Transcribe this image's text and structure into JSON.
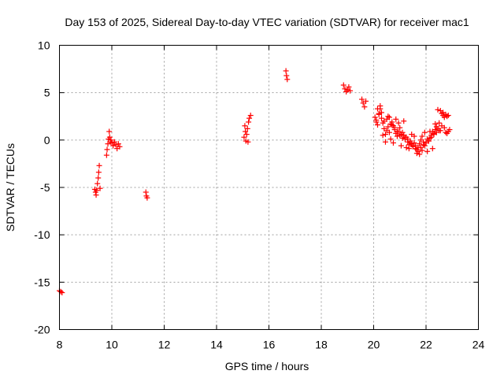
{
  "chart_data": {
    "type": "scatter",
    "title": "Day 153 of 2025, Sidereal Day-to-day VTEC variation (SDTVAR) for receiver mac1",
    "xlabel": "GPS time / hours",
    "ylabel": "SDTVAR / TECUs",
    "xlim": [
      8,
      24
    ],
    "ylim": [
      -20,
      10
    ],
    "xticks": [
      8,
      10,
      12,
      14,
      16,
      18,
      20,
      22,
      24
    ],
    "yticks": [
      10,
      5,
      0,
      -5,
      -10,
      -15,
      -20
    ],
    "grid": true,
    "marker": "+",
    "color": "#ff0000",
    "series": [
      {
        "name": "SDTVAR",
        "x": [
          8.0,
          8.05,
          8.1,
          9.35,
          9.38,
          9.4,
          9.42,
          9.45,
          9.48,
          9.5,
          9.52,
          9.55,
          9.8,
          9.82,
          9.85,
          9.87,
          9.9,
          9.92,
          9.95,
          9.97,
          10.0,
          10.05,
          10.1,
          10.15,
          10.2,
          10.25,
          10.3,
          11.3,
          11.32,
          11.35,
          15.05,
          15.08,
          15.1,
          15.12,
          15.15,
          15.18,
          15.2,
          15.22,
          15.25,
          15.3,
          16.65,
          16.67,
          16.7,
          18.85,
          18.9,
          18.95,
          19.0,
          19.05,
          19.1,
          19.55,
          19.6,
          19.65,
          19.7,
          20.05,
          20.1,
          20.15,
          20.2,
          20.25,
          20.3,
          20.35,
          20.4,
          20.45,
          20.5,
          20.55,
          20.6,
          20.65,
          20.7,
          20.75,
          20.8,
          20.85,
          20.9,
          20.95,
          21.0,
          21.05,
          21.1,
          21.15,
          21.2,
          21.25,
          21.3,
          21.35,
          21.4,
          21.45,
          21.5,
          21.55,
          21.6,
          21.65,
          21.7,
          21.75,
          21.8,
          21.85,
          21.9,
          21.95,
          22.0,
          22.05,
          22.1,
          22.15,
          22.2,
          22.25,
          22.3,
          22.35,
          22.4,
          22.45,
          22.5,
          22.55,
          22.6,
          22.65,
          22.7,
          22.75,
          22.8,
          22.85,
          22.9,
          20.1,
          20.2,
          20.3,
          20.4,
          20.5,
          20.6,
          20.7,
          20.8,
          20.9,
          21.0,
          21.1,
          21.2,
          21.3,
          21.4,
          21.5,
          21.6,
          21.7,
          21.8,
          21.9,
          22.0,
          22.1,
          22.2,
          22.3,
          22.4,
          22.5,
          22.6,
          22.7,
          22.8,
          20.15,
          20.25,
          20.35,
          20.45,
          20.55,
          20.65,
          20.75,
          20.85,
          20.95,
          21.05,
          21.15,
          21.25,
          21.35,
          21.45,
          21.55,
          21.65,
          21.75,
          21.85,
          21.95,
          22.05,
          22.15,
          22.25,
          22.35,
          22.45,
          22.55,
          22.65,
          22.75,
          22.85
        ],
        "y": [
          -15.9,
          -16.0,
          -16.1,
          -5.2,
          -5.5,
          -5.8,
          -5.3,
          -4.6,
          -4.0,
          -3.4,
          -2.7,
          -5.1,
          -1.6,
          -1.0,
          -0.4,
          0.1,
          0.9,
          0.3,
          -0.2,
          0.0,
          -0.3,
          -0.6,
          -0.2,
          -0.5,
          -0.9,
          -0.4,
          -0.7,
          -5.5,
          -5.9,
          -6.1,
          0.3,
          1.5,
          0.9,
          -0.1,
          0.6,
          1.2,
          -0.2,
          1.9,
          2.3,
          2.6,
          7.3,
          6.8,
          6.4,
          5.8,
          5.4,
          5.1,
          5.3,
          5.6,
          5.2,
          4.3,
          3.9,
          3.5,
          4.1,
          2.4,
          2.1,
          1.6,
          2.8,
          3.3,
          2.9,
          1.8,
          1.2,
          0.6,
          1.0,
          1.4,
          0.8,
          1.7,
          1.9,
          1.5,
          1.1,
          0.7,
          0.4,
          0.9,
          1.3,
          0.6,
          0.2,
          0.5,
          0.1,
          0.3,
          -0.2,
          -0.5,
          -0.1,
          -0.4,
          -0.7,
          -0.3,
          -0.6,
          -1.0,
          -0.8,
          -0.4,
          0.0,
          0.4,
          -0.2,
          -0.6,
          -0.3,
          0.1,
          -0.1,
          0.2,
          0.5,
          0.9,
          0.7,
          1.1,
          0.8,
          1.2,
          1.0,
          3.1,
          2.8,
          2.6,
          2.4,
          2.7,
          2.5,
          0.9,
          1.1,
          1.9,
          2.7,
          2.3,
          2.0,
          2.2,
          2.4,
          1.6,
          1.3,
          0.9,
          0.5,
          0.8,
          0.3,
          0.1,
          -0.3,
          -0.6,
          -0.9,
          -1.2,
          -0.8,
          -0.5,
          -0.3,
          -0.1,
          0.3,
          0.6,
          1.4,
          1.8,
          1.5,
          1.3,
          0.7,
          3.3,
          3.6,
          0.5,
          -0.2,
          2.5,
          0.1,
          -0.3,
          2.2,
          1.8,
          -0.6,
          2.0,
          -0.8,
          -0.9,
          0.6,
          0.4,
          -1.4,
          -1.5,
          -1.1,
          0.8,
          -1.2,
          0.9,
          -0.9,
          1.7,
          3.2,
          1.0,
          2.9,
          0.8,
          2.6
        ]
      }
    ]
  }
}
